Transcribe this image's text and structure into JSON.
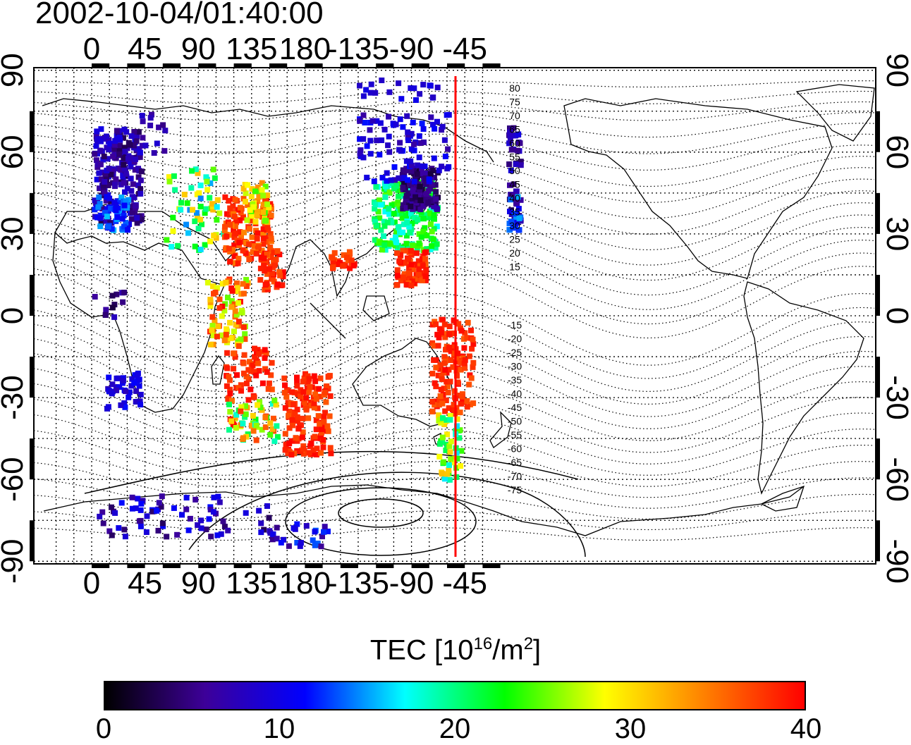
{
  "title": "2002-10-04/01:40:00",
  "map": {
    "x_ticks": [
      "0",
      "45",
      "90",
      "135",
      "180",
      "-135",
      "-90",
      "-45"
    ],
    "y_ticks_left": [
      "90",
      "60",
      "30",
      "0",
      "-30",
      "-60",
      "-90"
    ],
    "y_ticks_right": [
      "90",
      "60",
      "30",
      "0",
      "-30",
      "-60",
      "-90"
    ],
    "contour_labels_north": [
      "80",
      "75",
      "70",
      "65",
      "60",
      "55",
      "50",
      "45",
      "40",
      "35",
      "30",
      "25",
      "20",
      "15"
    ],
    "contour_labels_south": [
      "-15",
      "-20",
      "-25",
      "-30",
      "-35",
      "-40",
      "-45",
      "-50",
      "-55",
      "-60",
      "-65",
      "-70",
      "-75"
    ],
    "terminator_color": "#ff0000"
  },
  "colorbar": {
    "title_main": "TEC  [10",
    "title_sup1": "16",
    "title_mid": "/m",
    "title_sup2": "2",
    "title_end": "]",
    "tick_labels": [
      "0",
      "10",
      "20",
      "30",
      "40"
    ],
    "min": 0,
    "max": 40,
    "colors": [
      "#000000",
      "#3d0099",
      "#0000ff",
      "#00ffff",
      "#00ff00",
      "#ffff00",
      "#ff8000",
      "#ff0000"
    ]
  }
}
